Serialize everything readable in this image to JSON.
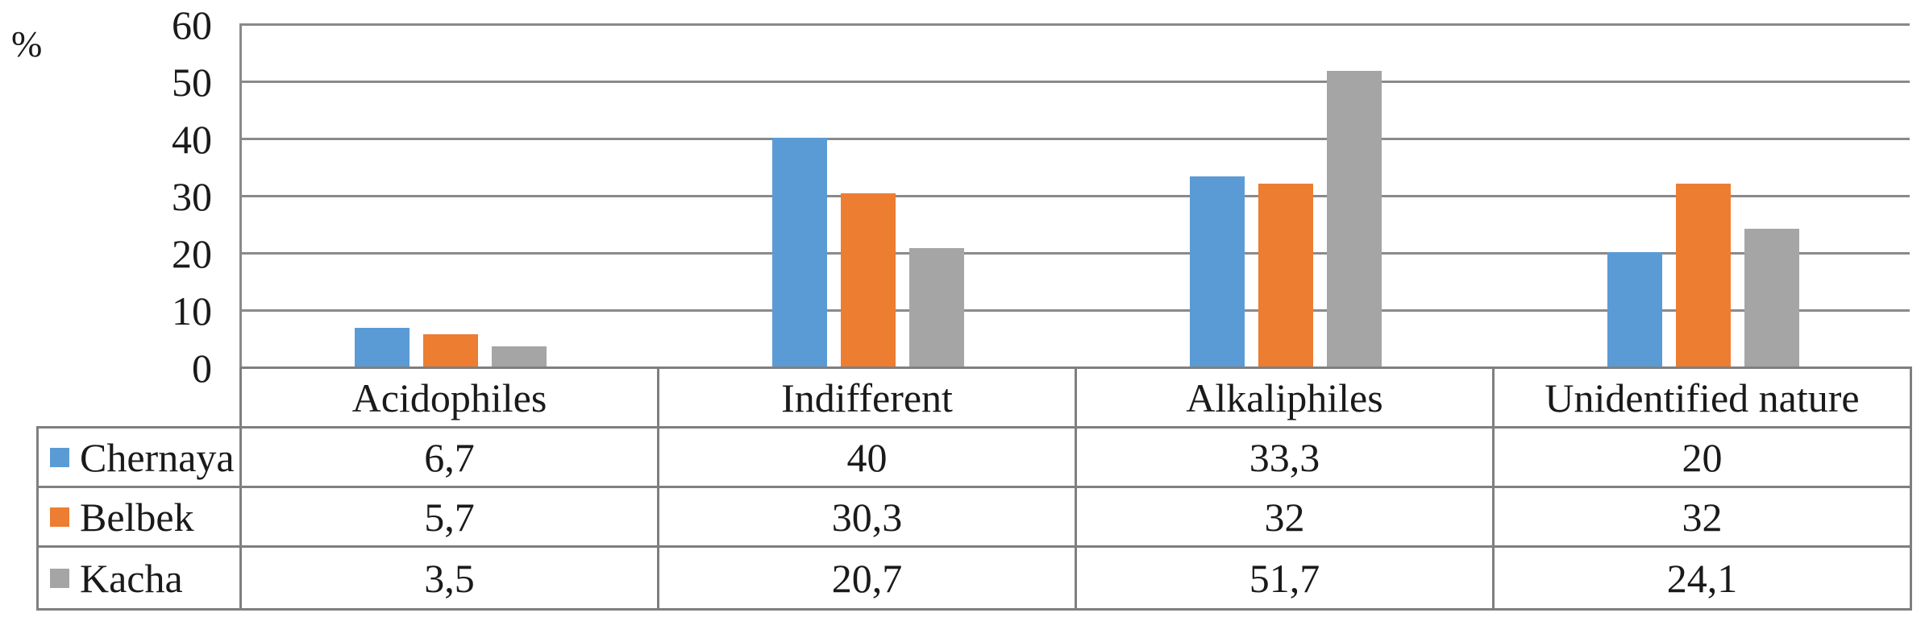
{
  "chart_data": {
    "type": "bar",
    "title": "",
    "xlabel": "",
    "ylabel": "%",
    "ylim": [
      0,
      60
    ],
    "yticks": [
      0,
      10,
      20,
      30,
      40,
      50,
      60
    ],
    "grid": true,
    "legend_position": "table-left-column",
    "value_format": "decimal-comma",
    "categories": [
      "Acidophiles",
      "Indifferent",
      "Alkaliphiles",
      "Unidentified nature"
    ],
    "series": [
      {
        "name": "Chernaya",
        "color": "#5B9BD5",
        "values": [
          6.7,
          40,
          33.3,
          20
        ],
        "display_values": [
          "6,7",
          "40",
          "33,3",
          "20"
        ]
      },
      {
        "name": "Belbek",
        "color": "#ED7D31",
        "values": [
          5.7,
          30.3,
          32,
          32
        ],
        "display_values": [
          "5,7",
          "30,3",
          "32",
          "32"
        ]
      },
      {
        "name": "Kacha",
        "color": "#A5A5A5",
        "values": [
          3.5,
          20.7,
          51.7,
          24.1
        ],
        "display_values": [
          "3,5",
          "20,7",
          "51,7",
          "24,1"
        ]
      }
    ]
  },
  "styles": {
    "gridline_color": "#8A8A8A",
    "table_border_color": "#7F7F7F",
    "text_color": "#1A1A1A",
    "background": "#FFFFFF"
  }
}
